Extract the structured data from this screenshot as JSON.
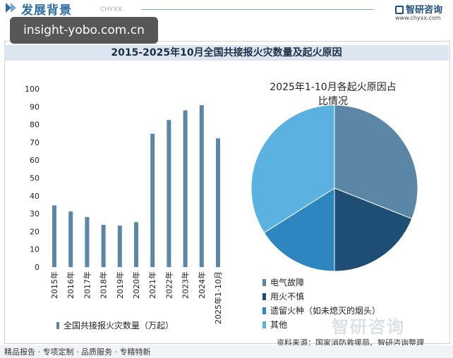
{
  "header": {
    "section_title": "发展背景",
    "section_sub": "CHYXX",
    "logo_text": "智研咨询",
    "logo_url": "www.chyxx.com"
  },
  "watermark": {
    "text": "insight-yobo.com.cn"
  },
  "chart_title": "2015-2025年10月全国共接报火灾数量及起火原因",
  "chart_data": [
    {
      "type": "bar",
      "categories": [
        "2015年",
        "2016年",
        "2017年",
        "2018年",
        "2019年",
        "2020年",
        "2021年",
        "2022年",
        "2023年",
        "2024年",
        "2025年1-10月"
      ],
      "series": [
        {
          "name": "全国共接报火灾数量（万起）",
          "values": [
            34.6,
            31.2,
            28.1,
            23.7,
            23.3,
            25.2,
            74.8,
            82.5,
            87.9,
            90.8,
            72.2
          ]
        }
      ],
      "yticks": [
        "0",
        "10",
        "20",
        "30",
        "40",
        "50",
        "60",
        "70",
        "80",
        "90",
        "100"
      ],
      "ylim": [
        0,
        100
      ],
      "legend": "bottom",
      "color": "#5b86a5"
    },
    {
      "type": "pie",
      "title": "2025年1-10月各起火原因占比情况",
      "title_lines": [
        "2025年1-10月各起火原因占",
        "比情况"
      ],
      "labels": [
        "电气故障",
        "用火不慎",
        "遗留火种（如未熄灭的烟头）",
        "其他"
      ],
      "values": [
        31,
        19,
        16,
        34
      ],
      "colors": [
        "#5b86a5",
        "#1e4e74",
        "#2e86c1",
        "#5bb1e0"
      ],
      "legend": "bottom"
    }
  ],
  "source": "资料来源：国家消防救援局、智研咨询整理",
  "footer": "精品报告 · 专项定制 · 品质服务 · 专精特新",
  "footer_brand": "智研咨询"
}
